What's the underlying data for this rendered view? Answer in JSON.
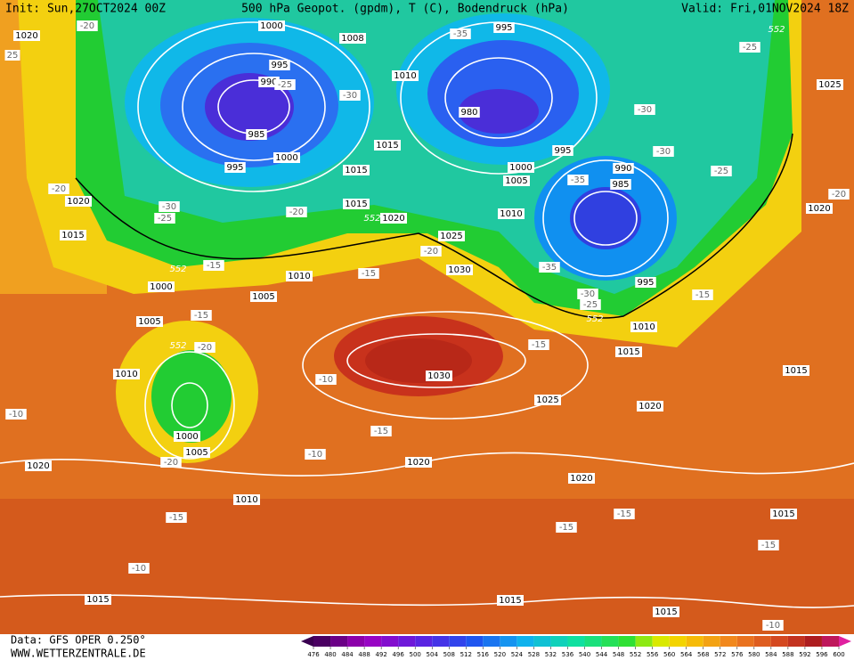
{
  "header": {
    "init": "Init: Sun,27OCT2024 00Z",
    "title": "500 hPa Geopot. (gpdm), T (C), Bodendruck (hPa)",
    "valid": "Valid: Fri,01NOV2024 18Z"
  },
  "footer": {
    "data_source": "Data: GFS OPER 0.250°",
    "website": "WWW.WETTERZENTRALE.DE"
  },
  "colorbar": {
    "ticks": [
      476,
      480,
      484,
      488,
      492,
      496,
      500,
      504,
      508,
      512,
      516,
      520,
      524,
      528,
      532,
      536,
      540,
      544,
      548,
      552,
      556,
      560,
      564,
      568,
      572,
      576,
      580,
      584,
      588,
      592,
      596,
      600
    ]
  },
  "map": {
    "pressure_labels": [
      "1020",
      "1000",
      "1008",
      "995",
      "990",
      "1010",
      "985",
      "995",
      "1000",
      "1015",
      "1015",
      "1015",
      "1020",
      "1025",
      "1030",
      "1010",
      "1005",
      "1000",
      "1005",
      "1010",
      "1020",
      "1015",
      "1000",
      "1005",
      "1020",
      "1010",
      "1015",
      "1015",
      "1015",
      "1030",
      "1025",
      "1020",
      "1020",
      "1020",
      "1015",
      "1015",
      "1015",
      "1010",
      "1020",
      "1025",
      "995",
      "980",
      "1000",
      "1005",
      "1010",
      "995",
      "990",
      "985",
      "995"
    ],
    "temperature_labels": [
      "25",
      "-20",
      "-35",
      "-25",
      "-25",
      "-30",
      "-30",
      "-30",
      "-25",
      "-35",
      "-20",
      "-20",
      "-30",
      "-25",
      "-20",
      "-20",
      "-15",
      "-15",
      "-35",
      "-30",
      "-25",
      "-15",
      "-15",
      "-20",
      "-15",
      "-10",
      "-10",
      "-15",
      "-10",
      "-20",
      "-15",
      "-15",
      "-15",
      "-15",
      "-10",
      "-10"
    ],
    "height_labels": [
      "552",
      "552",
      "552",
      "552",
      "552"
    ]
  }
}
